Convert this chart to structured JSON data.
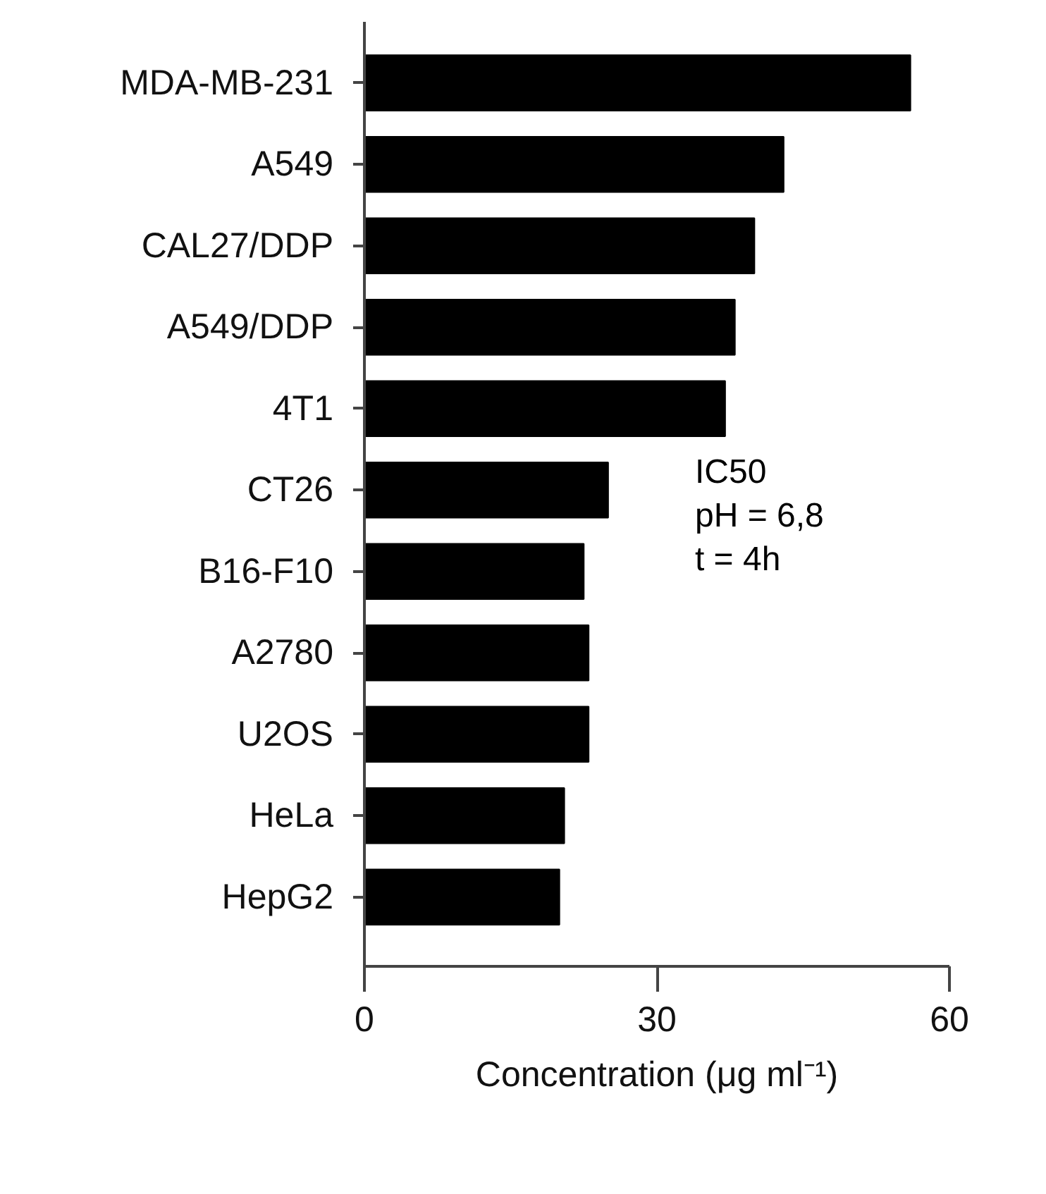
{
  "chart_data": {
    "type": "bar",
    "orientation": "horizontal",
    "categories": [
      "MDA-MB-231",
      "A549",
      "CAL27/DDP",
      "A549/DDP",
      "4T1",
      "CT26",
      "B16-F10",
      "A2780",
      "U2OS",
      "HeLa",
      "HepG2"
    ],
    "values": [
      56,
      43,
      40,
      38,
      37,
      25,
      22.5,
      23,
      23,
      20.5,
      20
    ],
    "color": "#000000",
    "xlim": [
      0,
      60
    ],
    "xticks": [
      0,
      30,
      60
    ],
    "xlabel": "Concentration (μg ml⁻¹)",
    "annotations": [
      "IC50\npH = 6,8\nt = 4h"
    ]
  }
}
